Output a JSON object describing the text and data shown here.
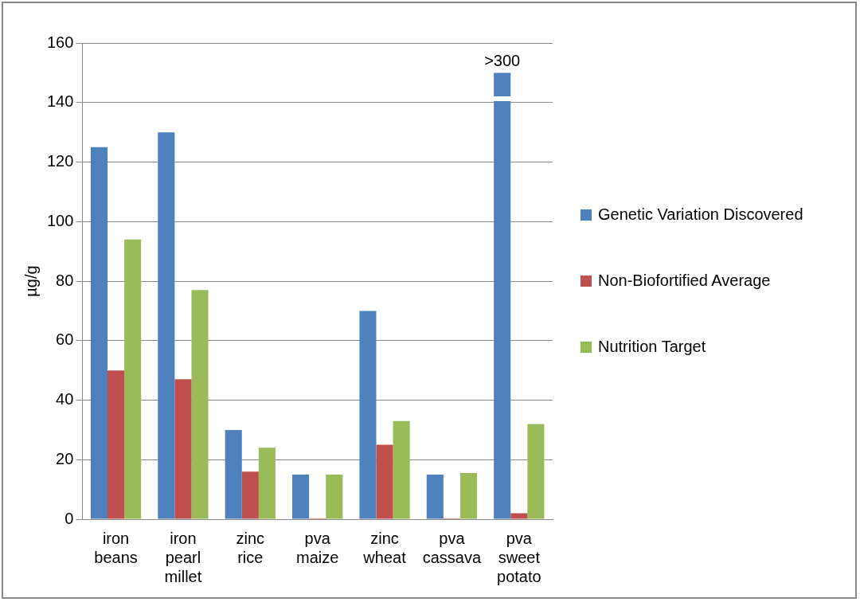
{
  "chart_data": {
    "type": "bar",
    "ylabel": "µg/g",
    "categories": [
      "iron beans",
      "iron pearl millet",
      "zinc rice",
      "pva maize",
      "zinc wheat",
      "pva cassava",
      "pva sweet potato"
    ],
    "series": [
      {
        "name": "Genetic Variation Discovered",
        "color": "#4f81bd",
        "values": [
          125,
          130,
          30,
          15,
          70,
          15,
          150
        ]
      },
      {
        "name": "Non-Biofortified Average",
        "color": "#c0504d",
        "values": [
          50,
          47,
          16,
          0.3,
          25,
          0.3,
          2
        ]
      },
      {
        "name": "Nutrition Target",
        "color": "#9bbb59",
        "values": [
          94,
          77,
          24,
          15,
          33,
          15.5,
          32
        ]
      }
    ],
    "ylim": [
      0,
      160
    ],
    "yticks": [
      0,
      20,
      40,
      60,
      80,
      100,
      120,
      140,
      160
    ],
    "grid": "y",
    "legend": "right",
    "annotations": [
      ">300"
    ]
  }
}
